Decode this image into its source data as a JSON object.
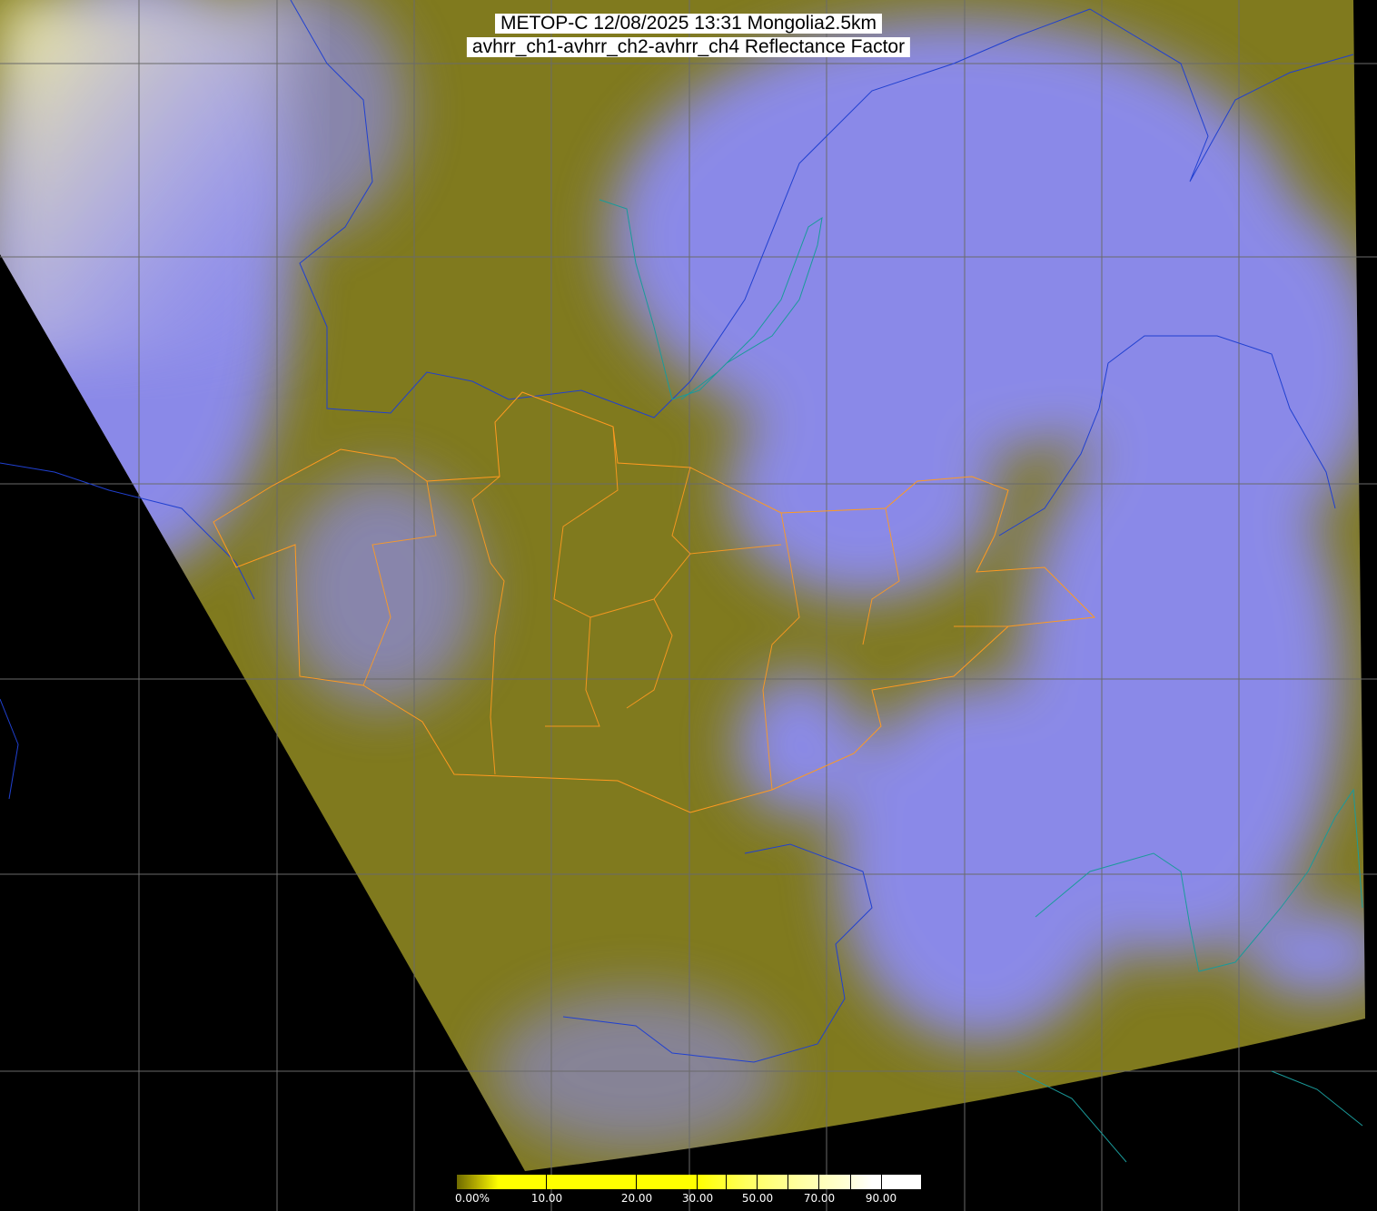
{
  "title": {
    "line1": "METOP-C 12/08/2025 13:31 Mongolia2.5km",
    "line2": "avhrr_ch1-avhrr_ch2-avhrr_ch4 Reflectance Factor"
  },
  "colorbar": {
    "labels": [
      "0.00%",
      "10.00",
      "20.00",
      "30.00",
      "50.00",
      "70.00",
      "90.00"
    ],
    "colors": {
      "low": "#6e6a00",
      "mid": "#ffff00",
      "high": "#ffffff"
    }
  },
  "map_colors": {
    "background": "#000000",
    "clear_land": "#807a1e",
    "cloud": "#8c8cff",
    "grid": "#707070",
    "mongolia_border": "#ff9a20",
    "coastline": "#1a9a9a",
    "country_border": "#2040d0"
  }
}
